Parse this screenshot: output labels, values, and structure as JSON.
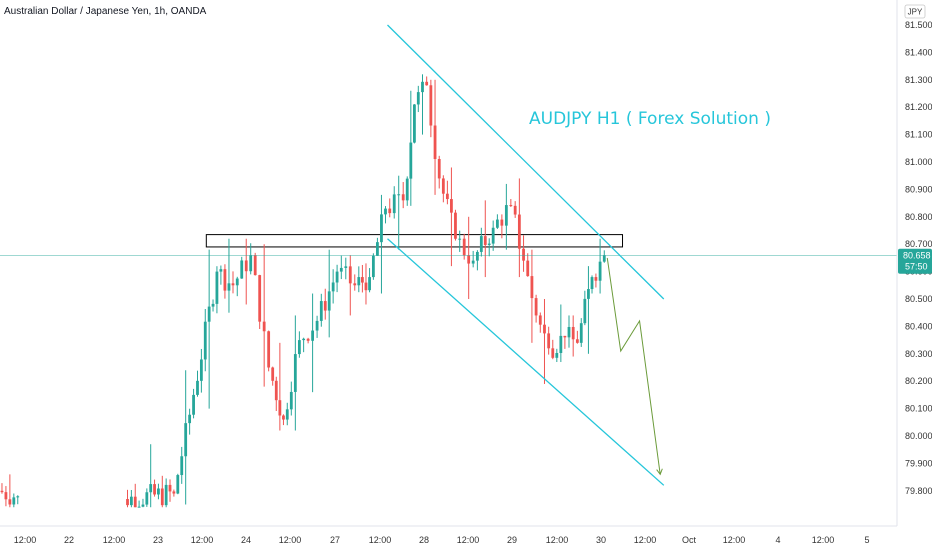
{
  "header": {
    "symbol_title": "Australian Dollar / Japanese Yen, 1h, OANDA"
  },
  "annotation": {
    "text": "AUDJPY H1 ( Forex Solution )",
    "color": "#26c6da"
  },
  "colors": {
    "up": "#26a69a",
    "down": "#ef5350",
    "channel": "#26c6da",
    "projection": "#6b9b3a",
    "last_price_line": "#26a69a",
    "box": "#000000"
  },
  "chart_data": {
    "type": "candlestick",
    "currency": "JPY",
    "y_ticks": [
      "81.500",
      "81.400",
      "81.300",
      "81.200",
      "81.100",
      "81.000",
      "80.900",
      "80.800",
      "80.700",
      "80.600",
      "80.500",
      "80.400",
      "80.300",
      "80.200",
      "80.100",
      "80.000",
      "79.900",
      "79.800"
    ],
    "x_ticks": [
      "12:00",
      "22",
      "12:00",
      "23",
      "12:00",
      "24",
      "12:00",
      "27",
      "12:00",
      "28",
      "12:00",
      "29",
      "12:00",
      "30",
      "12:00",
      "Oct",
      "12:00",
      "4",
      "12:00",
      "5"
    ],
    "last_price": {
      "value": "80.658",
      "countdown": "57:50",
      "price": 80.658
    },
    "ylim": [
      79.75,
      81.55
    ],
    "resistance_zone": {
      "x_from": 0.23,
      "x_to": 0.694,
      "y_low": 80.69,
      "y_high": 80.735
    },
    "channel_upper": {
      "x_from": 0.432,
      "y_from": 81.5,
      "x_to": 0.74,
      "y_to": 80.5
    },
    "channel_lower": {
      "x_from": 0.432,
      "y_from": 80.72,
      "x_to": 0.74,
      "y_to": 79.82
    },
    "projection_path": [
      {
        "x": 0.677,
        "y": 80.65
      },
      {
        "x": 0.692,
        "y": 80.31
      },
      {
        "x": 0.713,
        "y": 80.42
      },
      {
        "x": 0.736,
        "y": 79.86
      }
    ],
    "segments": [
      {
        "x_from": 0.0,
        "x_to": 0.022,
        "open": 79.8,
        "close": 79.78,
        "high": 79.86,
        "low": 79.74
      },
      {
        "x_from": 0.14,
        "x_to": 0.196,
        "open": 79.77,
        "close": 79.79,
        "high": 79.97,
        "low": 79.74
      },
      {
        "x_from": 0.196,
        "x_to": 0.218,
        "open": 79.79,
        "close": 80.15,
        "high": 80.24,
        "low": 79.75
      },
      {
        "x_from": 0.218,
        "x_to": 0.244,
        "open": 80.15,
        "close": 80.6,
        "high": 80.68,
        "low": 80.1
      },
      {
        "x_from": 0.244,
        "x_to": 0.262,
        "open": 80.6,
        "close": 80.55,
        "high": 80.72,
        "low": 80.45
      },
      {
        "x_from": 0.262,
        "x_to": 0.282,
        "open": 80.55,
        "close": 80.66,
        "high": 80.72,
        "low": 80.48
      },
      {
        "x_from": 0.282,
        "x_to": 0.302,
        "open": 80.66,
        "close": 80.25,
        "high": 80.7,
        "low": 80.18
      },
      {
        "x_from": 0.302,
        "x_to": 0.318,
        "open": 80.25,
        "close": 80.06,
        "high": 80.34,
        "low": 80.02
      },
      {
        "x_from": 0.318,
        "x_to": 0.336,
        "open": 80.06,
        "close": 80.35,
        "high": 80.44,
        "low": 80.02
      },
      {
        "x_from": 0.336,
        "x_to": 0.356,
        "open": 80.35,
        "close": 80.42,
        "high": 80.52,
        "low": 80.16
      },
      {
        "x_from": 0.356,
        "x_to": 0.378,
        "open": 80.42,
        "close": 80.6,
        "high": 80.68,
        "low": 80.36
      },
      {
        "x_from": 0.378,
        "x_to": 0.398,
        "open": 80.6,
        "close": 80.55,
        "high": 80.66,
        "low": 80.44
      },
      {
        "x_from": 0.398,
        "x_to": 0.414,
        "open": 80.55,
        "close": 80.58,
        "high": 80.63,
        "low": 80.48
      },
      {
        "x_from": 0.414,
        "x_to": 0.432,
        "open": 80.58,
        "close": 80.83,
        "high": 80.88,
        "low": 80.52
      },
      {
        "x_from": 0.432,
        "x_to": 0.452,
        "open": 80.83,
        "close": 80.86,
        "high": 80.95,
        "low": 80.68
      },
      {
        "x_from": 0.452,
        "x_to": 0.464,
        "open": 80.86,
        "close": 81.21,
        "high": 81.26,
        "low": 80.84
      },
      {
        "x_from": 0.464,
        "x_to": 0.478,
        "open": 81.21,
        "close": 81.28,
        "high": 81.32,
        "low": 81.1
      },
      {
        "x_from": 0.478,
        "x_to": 0.492,
        "open": 81.28,
        "close": 80.94,
        "high": 81.3,
        "low": 80.88
      },
      {
        "x_from": 0.492,
        "x_to": 0.51,
        "open": 80.94,
        "close": 80.72,
        "high": 80.98,
        "low": 80.62
      },
      {
        "x_from": 0.51,
        "x_to": 0.53,
        "open": 80.72,
        "close": 80.64,
        "high": 80.8,
        "low": 80.5
      },
      {
        "x_from": 0.53,
        "x_to": 0.552,
        "open": 80.64,
        "close": 80.76,
        "high": 80.86,
        "low": 80.58
      },
      {
        "x_from": 0.552,
        "x_to": 0.572,
        "open": 80.76,
        "close": 80.84,
        "high": 80.92,
        "low": 80.68
      },
      {
        "x_from": 0.572,
        "x_to": 0.586,
        "open": 80.84,
        "close": 80.64,
        "high": 80.94,
        "low": 80.58
      },
      {
        "x_from": 0.586,
        "x_to": 0.6,
        "open": 80.64,
        "close": 80.44,
        "high": 80.68,
        "low": 80.34
      },
      {
        "x_from": 0.6,
        "x_to": 0.614,
        "open": 80.44,
        "close": 80.32,
        "high": 80.5,
        "low": 80.19
      },
      {
        "x_from": 0.614,
        "x_to": 0.632,
        "open": 80.32,
        "close": 80.36,
        "high": 80.48,
        "low": 80.27
      },
      {
        "x_from": 0.632,
        "x_to": 0.646,
        "open": 80.36,
        "close": 80.34,
        "high": 80.44,
        "low": 80.29
      },
      {
        "x_from": 0.646,
        "x_to": 0.662,
        "open": 80.34,
        "close": 80.58,
        "high": 80.62,
        "low": 80.3
      },
      {
        "x_from": 0.662,
        "x_to": 0.676,
        "open": 80.58,
        "close": 80.66,
        "high": 80.72,
        "low": 80.52
      }
    ]
  }
}
